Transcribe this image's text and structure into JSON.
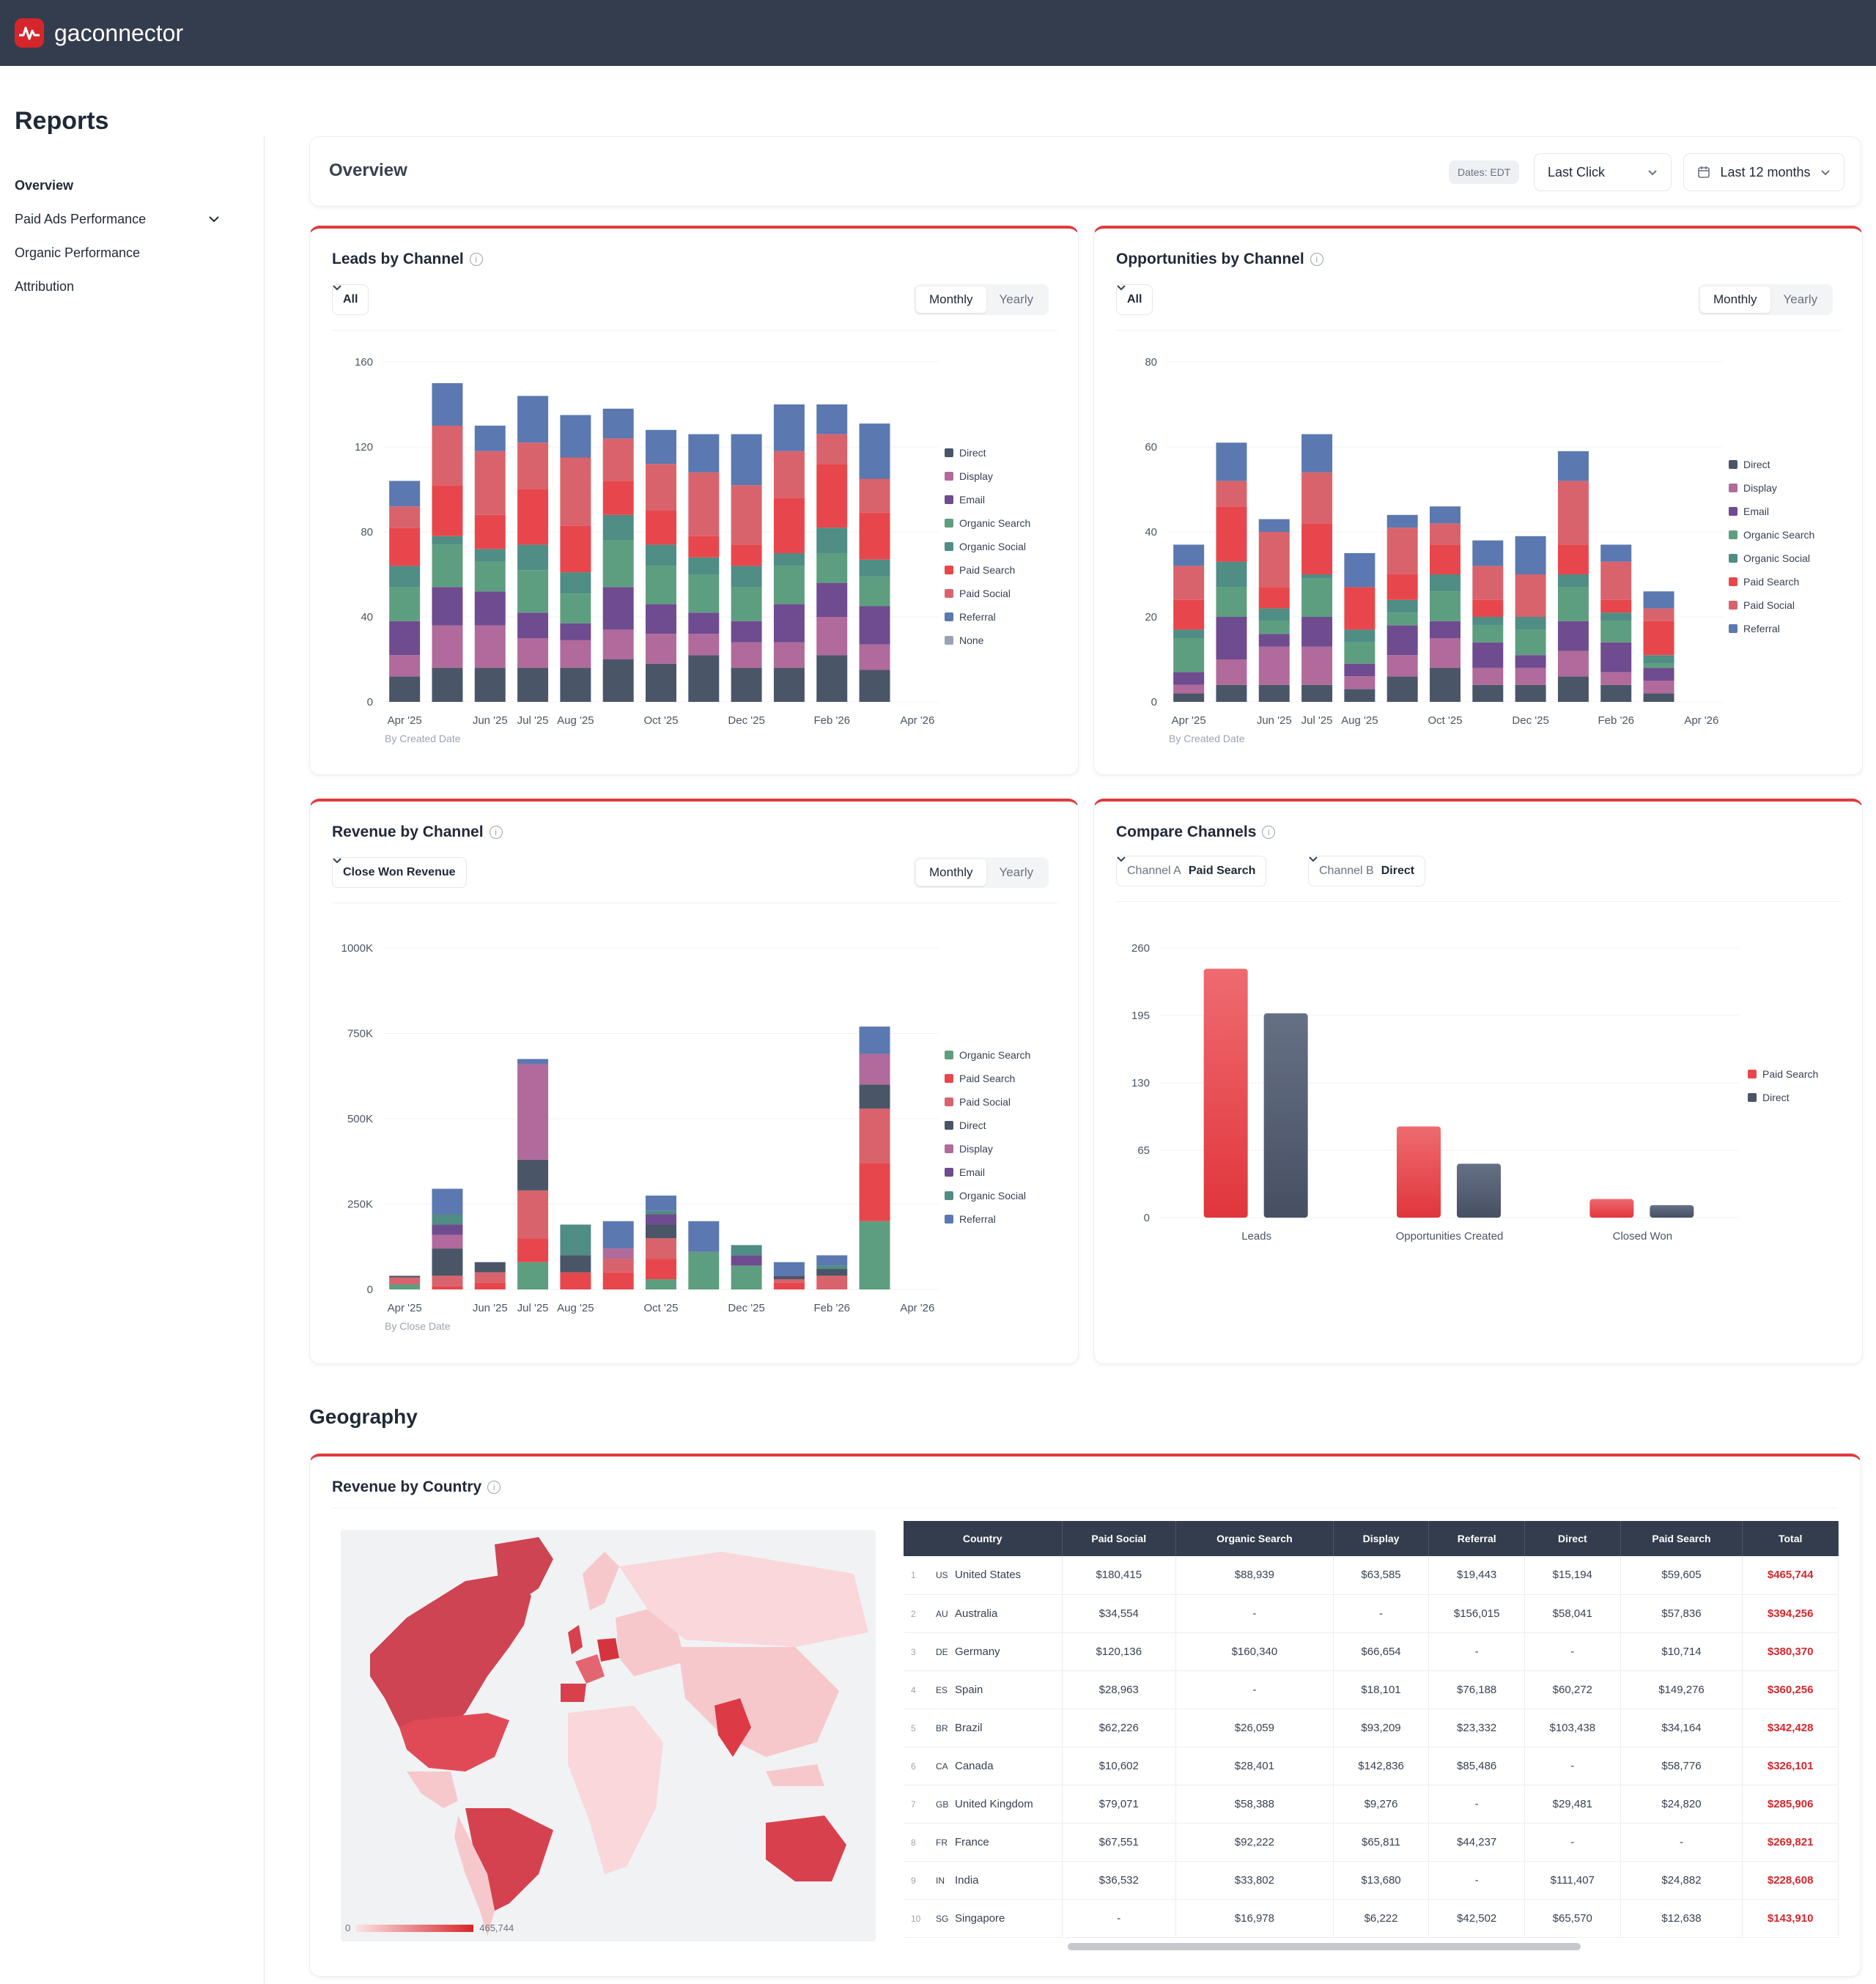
{
  "app": {
    "brand": "gaconnector"
  },
  "sidebar": {
    "title": "Reports",
    "items": [
      {
        "label": "Overview",
        "active": true
      },
      {
        "label": "Paid Ads Performance",
        "has_chevron": true
      },
      {
        "label": "Organic Performance"
      },
      {
        "label": "Attribution"
      }
    ]
  },
  "overview": {
    "title": "Overview",
    "dates_pill": "Dates: EDT",
    "attribution": "Last Click",
    "range": "Last 12 months"
  },
  "colors": {
    "Direct": "#4b5568",
    "Display": "#b06a9c",
    "Email": "#6f4b8f",
    "Organic Search": "#5e9e80",
    "Organic Social": "#4f8d85",
    "Paid Search": "#e7474c",
    "Paid Social": "#d9636c",
    "Referral": "#5b78b0",
    "None": "#9aa3af",
    "accent": "#e03a3e"
  },
  "leads": {
    "title": "Leads by Channel",
    "filter": "All",
    "seg": [
      "Monthly",
      "Yearly"
    ],
    "note": "By Created Date"
  },
  "opps": {
    "title": "Opportunities by Channel",
    "filter": "All",
    "seg": [
      "Monthly",
      "Yearly"
    ],
    "note": "By Created Date"
  },
  "revenue": {
    "title": "Revenue by Channel",
    "filter": "Close Won Revenue",
    "seg": [
      "Monthly",
      "Yearly"
    ],
    "note": "By Close Date"
  },
  "compare": {
    "title": "Compare Channels",
    "a_label": "Channel A",
    "a_value": "Paid Search",
    "b_label": "Channel B",
    "b_value": "Direct"
  },
  "geography": {
    "title": "Geography",
    "card_title": "Revenue by Country",
    "legend_min": "0",
    "legend_max": "465,744",
    "columns": [
      "Country",
      "Paid Social",
      "Organic Search",
      "Display",
      "Referral",
      "Direct",
      "Paid Search",
      "Total"
    ],
    "rows": [
      [
        "1",
        "US",
        "United States",
        "$180,415",
        "$88,939",
        "$63,585",
        "$19,443",
        "$15,194",
        "$59,605",
        "$465,744"
      ],
      [
        "2",
        "AU",
        "Australia",
        "$34,554",
        "-",
        "-",
        "$156,015",
        "$58,041",
        "$57,836",
        "$394,256"
      ],
      [
        "3",
        "DE",
        "Germany",
        "$120,136",
        "$160,340",
        "$66,654",
        "-",
        "-",
        "$10,714",
        "$380,370"
      ],
      [
        "4",
        "ES",
        "Spain",
        "$28,963",
        "-",
        "$18,101",
        "$76,188",
        "$60,272",
        "$149,276",
        "$360,256"
      ],
      [
        "5",
        "BR",
        "Brazil",
        "$62,226",
        "$26,059",
        "$93,209",
        "$23,332",
        "$103,438",
        "$34,164",
        "$342,428"
      ],
      [
        "6",
        "CA",
        "Canada",
        "$10,602",
        "$28,401",
        "$142,836",
        "$85,486",
        "-",
        "$58,776",
        "$326,101"
      ],
      [
        "7",
        "GB",
        "United Kingdom",
        "$79,071",
        "$58,388",
        "$9,276",
        "-",
        "$29,481",
        "$24,820",
        "$285,906"
      ],
      [
        "8",
        "FR",
        "France",
        "$67,551",
        "$92,222",
        "$65,811",
        "$44,237",
        "-",
        "-",
        "$269,821"
      ],
      [
        "9",
        "IN",
        "India",
        "$36,532",
        "$33,802",
        "$13,680",
        "-",
        "$111,407",
        "$24,882",
        "$228,608"
      ],
      [
        "10",
        "SG",
        "Singapore",
        "-",
        "$16,978",
        "$6,222",
        "$42,502",
        "$65,570",
        "$12,638",
        "$143,910"
      ]
    ]
  },
  "chart_data": [
    {
      "type": "bar",
      "stacked": true,
      "title": "Leads by Channel",
      "ylim": [
        0,
        160
      ],
      "yticks": [
        "0",
        "40",
        "80",
        "120",
        "160"
      ],
      "x_labels": [
        "Apr '25",
        "Jun '25",
        "Jul '25",
        "Aug '25",
        "Oct '25",
        "Dec '25",
        "Feb '26",
        "Apr '26"
      ],
      "categories": [
        "Apr '25",
        "May '25",
        "Jun '25",
        "Jul '25",
        "Aug '25",
        "Sep '25",
        "Oct '25",
        "Nov '25",
        "Dec '25",
        "Jan '26",
        "Feb '26",
        "Mar '26",
        "Apr '26"
      ],
      "legend": [
        "Direct",
        "Display",
        "Email",
        "Organic Search",
        "Organic Social",
        "Paid Search",
        "Paid Social",
        "Referral",
        "None"
      ],
      "series": [
        {
          "name": "Direct",
          "values": [
            12,
            16,
            16,
            16,
            16,
            20,
            18,
            22,
            16,
            16,
            22,
            15,
            0
          ]
        },
        {
          "name": "Display",
          "values": [
            10,
            20,
            20,
            14,
            13,
            14,
            14,
            10,
            12,
            12,
            18,
            12,
            0
          ]
        },
        {
          "name": "Email",
          "values": [
            16,
            18,
            16,
            12,
            8,
            20,
            14,
            10,
            10,
            18,
            16,
            18,
            0
          ]
        },
        {
          "name": "Organic Search",
          "values": [
            16,
            20,
            14,
            20,
            14,
            22,
            18,
            18,
            16,
            18,
            14,
            14,
            0
          ]
        },
        {
          "name": "Organic Social",
          "values": [
            10,
            4,
            6,
            12,
            10,
            12,
            10,
            8,
            10,
            6,
            12,
            8,
            0
          ]
        },
        {
          "name": "Paid Search",
          "values": [
            18,
            24,
            16,
            26,
            22,
            16,
            16,
            10,
            10,
            26,
            30,
            22,
            0
          ]
        },
        {
          "name": "Paid Social",
          "values": [
            10,
            28,
            30,
            22,
            32,
            20,
            22,
            30,
            28,
            22,
            14,
            16,
            0
          ]
        },
        {
          "name": "Referral",
          "values": [
            12,
            20,
            12,
            22,
            20,
            14,
            16,
            18,
            24,
            22,
            14,
            26,
            0
          ]
        }
      ]
    },
    {
      "type": "bar",
      "stacked": true,
      "title": "Opportunities by Channel",
      "ylim": [
        0,
        80
      ],
      "yticks": [
        "0",
        "20",
        "40",
        "60",
        "80"
      ],
      "x_labels": [
        "Apr '25",
        "Jun '25",
        "Jul '25",
        "Aug '25",
        "Oct '25",
        "Dec '25",
        "Feb '26",
        "Apr '26"
      ],
      "categories": [
        "Apr '25",
        "May '25",
        "Jun '25",
        "Jul '25",
        "Aug '25",
        "Sep '25",
        "Oct '25",
        "Nov '25",
        "Dec '25",
        "Jan '26",
        "Feb '26",
        "Mar '26",
        "Apr '26"
      ],
      "legend": [
        "Direct",
        "Display",
        "Email",
        "Organic Search",
        "Organic Social",
        "Paid Search",
        "Paid Social",
        "Referral"
      ],
      "series": [
        {
          "name": "Direct",
          "values": [
            2,
            4,
            4,
            4,
            3,
            6,
            8,
            4,
            4,
            6,
            4,
            2,
            0
          ]
        },
        {
          "name": "Display",
          "values": [
            2,
            6,
            9,
            9,
            3,
            5,
            7,
            4,
            4,
            6,
            3,
            3,
            0
          ]
        },
        {
          "name": "Email",
          "values": [
            3,
            10,
            3,
            7,
            3,
            7,
            4,
            6,
            3,
            7,
            7,
            3,
            0
          ]
        },
        {
          "name": "Organic Search",
          "values": [
            8,
            7,
            3,
            9,
            5,
            3,
            7,
            4,
            6,
            8,
            5,
            1,
            0
          ]
        },
        {
          "name": "Organic Social",
          "values": [
            2,
            6,
            3,
            1,
            3,
            3,
            4,
            2,
            3,
            3,
            2,
            2,
            0
          ]
        },
        {
          "name": "Paid Search",
          "values": [
            7,
            13,
            5,
            12,
            10,
            6,
            7,
            4,
            0,
            7,
            3,
            8,
            0
          ]
        },
        {
          "name": "Paid Social",
          "values": [
            8,
            6,
            13,
            12,
            0,
            11,
            5,
            8,
            10,
            15,
            9,
            3,
            0
          ]
        },
        {
          "name": "Referral",
          "values": [
            5,
            9,
            3,
            9,
            8,
            3,
            4,
            6,
            9,
            7,
            4,
            4,
            0
          ]
        }
      ]
    },
    {
      "type": "bar",
      "stacked": true,
      "title": "Revenue by Channel",
      "ylim": [
        0,
        1000
      ],
      "yticks": [
        "0",
        "250K",
        "500K",
        "750K",
        "1000K"
      ],
      "x_labels": [
        "Apr '25",
        "Jun '25",
        "Jul '25",
        "Aug '25",
        "Oct '25",
        "Dec '25",
        "Feb '26",
        "Apr '26"
      ],
      "categories": [
        "Apr '25",
        "May '25",
        "Jun '25",
        "Jul '25",
        "Aug '25",
        "Sep '25",
        "Oct '25",
        "Nov '25",
        "Dec '25",
        "Jan '26",
        "Feb '26",
        "Mar '26",
        "Apr '26"
      ],
      "legend": [
        "Organic Search",
        "Paid Search",
        "Paid Social",
        "Direct",
        "Display",
        "Email",
        "Organic Social",
        "Referral"
      ],
      "series": [
        {
          "name": "Organic Search",
          "values": [
            15,
            0,
            0,
            80,
            0,
            0,
            30,
            110,
            70,
            0,
            0,
            200,
            0
          ]
        },
        {
          "name": "Paid Search",
          "values": [
            0,
            10,
            20,
            70,
            50,
            50,
            60,
            0,
            0,
            20,
            0,
            170,
            0
          ]
        },
        {
          "name": "Paid Social",
          "values": [
            20,
            30,
            30,
            140,
            0,
            40,
            60,
            0,
            0,
            10,
            40,
            160,
            0
          ]
        },
        {
          "name": "Direct",
          "values": [
            5,
            80,
            30,
            90,
            50,
            0,
            40,
            0,
            0,
            10,
            20,
            70,
            0
          ]
        },
        {
          "name": "Display",
          "values": [
            0,
            40,
            0,
            280,
            0,
            30,
            0,
            0,
            0,
            0,
            0,
            90,
            0
          ]
        },
        {
          "name": "Email",
          "values": [
            0,
            30,
            0,
            0,
            0,
            0,
            30,
            0,
            30,
            0,
            0,
            0,
            0
          ]
        },
        {
          "name": "Organic Social",
          "values": [
            0,
            30,
            0,
            0,
            90,
            0,
            10,
            0,
            30,
            0,
            10,
            0,
            0
          ]
        },
        {
          "name": "Referral",
          "values": [
            0,
            75,
            0,
            15,
            0,
            80,
            45,
            90,
            0,
            40,
            30,
            80,
            0
          ]
        }
      ]
    },
    {
      "type": "bar",
      "title": "Compare Channels",
      "ylim": [
        0,
        260
      ],
      "yticks": [
        "0",
        "65",
        "130",
        "195",
        "260"
      ],
      "categories": [
        "Leads",
        "Opportunities Created",
        "Closed Won"
      ],
      "series": [
        {
          "name": "Paid Search",
          "values": [
            240,
            88,
            18
          ]
        },
        {
          "name": "Direct",
          "values": [
            197,
            52,
            12
          ]
        }
      ]
    }
  ]
}
